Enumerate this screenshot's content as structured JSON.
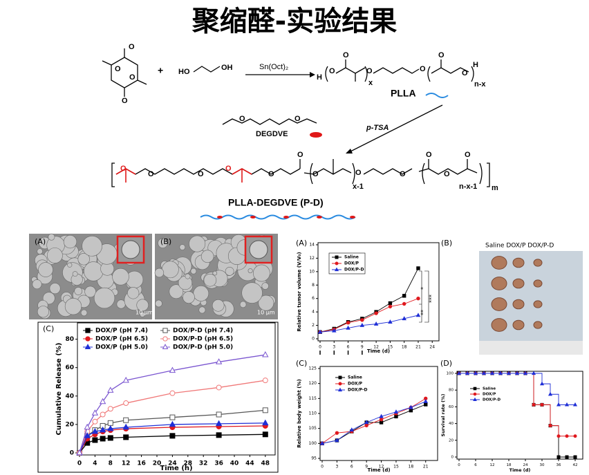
{
  "title": "聚缩醛-实验结果",
  "scheme": {
    "plus": "+",
    "ho": "HO",
    "oh": "OH",
    "atom_o": "O",
    "atom_h": "H",
    "catalyst": "Sn(Oct)₂",
    "x": "x",
    "n_x": "n-x",
    "plla": "PLLA",
    "degdve": "DEGDVE",
    "ptsa": "p-TSA",
    "x_1": "x-1",
    "n_x_1": "n-x-1",
    "m": "m",
    "product": "PLLA-DEGDVE  (P-D)"
  },
  "sem": {
    "label_a": "(A)",
    "label_b": "(B)",
    "scale": "10 μm"
  },
  "photo": {
    "label": "(B)",
    "groups": "Saline  DOX/P  DOX/P-D"
  },
  "chart_data": [
    {
      "type": "line",
      "label": "(C)",
      "xlabel": "Time (h)",
      "ylabel": "Cumulative Release (%)",
      "x": [
        0,
        2,
        4,
        6,
        8,
        12,
        24,
        36,
        48
      ],
      "xlim": [
        0,
        50
      ],
      "ylim": [
        0,
        90
      ],
      "xticks": [
        0,
        4,
        8,
        12,
        16,
        20,
        24,
        28,
        32,
        36,
        40,
        44,
        48
      ],
      "yticks": [
        0,
        20,
        40,
        60,
        80
      ],
      "series": [
        {
          "name": "DOX/P (pH 7.4)",
          "color": "#000000",
          "marker": "square",
          "filled": true,
          "values": [
            0,
            7,
            9,
            10,
            10.5,
            11,
            12,
            12.5,
            13
          ]
        },
        {
          "name": "DOX/P-D (pH 7.4)",
          "color": "#555555",
          "marker": "square",
          "filled": false,
          "values": [
            0,
            12,
            16,
            19,
            21,
            23,
            25,
            27,
            30
          ]
        },
        {
          "name": "DOX/P (pH 6.5)",
          "color": "#e0191e",
          "marker": "circle",
          "filled": true,
          "values": [
            0,
            10,
            13,
            15,
            16,
            17,
            18,
            18.5,
            19
          ]
        },
        {
          "name": "DOX/P-D (pH 6.5)",
          "color": "#f07878",
          "marker": "circle",
          "filled": false,
          "values": [
            0,
            15,
            22,
            27,
            31,
            35,
            42,
            46,
            51
          ]
        },
        {
          "name": "DOX/P (pH 5.0)",
          "color": "#1f2fd6",
          "marker": "triangle",
          "filled": true,
          "values": [
            0,
            12,
            15,
            16,
            17,
            18,
            20,
            20.5,
            21
          ]
        },
        {
          "name": "DOX/P-D (pH 5.0)",
          "color": "#7a55d0",
          "marker": "triangle",
          "filled": false,
          "values": [
            0,
            18,
            28,
            36,
            44,
            51,
            58,
            64,
            69
          ]
        }
      ]
    },
    {
      "type": "line",
      "label": "(A)",
      "xlabel": "Time (d)",
      "ylabel": "Relative tumor volume (V/V₀)",
      "annotations": [
        "*",
        "**",
        "***"
      ],
      "x": [
        0,
        3,
        6,
        9,
        12,
        15,
        18,
        21
      ],
      "xlim": [
        0,
        25
      ],
      "ylim": [
        0,
        14
      ],
      "xticks": [
        0,
        3,
        6,
        9,
        12,
        15,
        18,
        21,
        24
      ],
      "yticks": [
        0,
        2,
        4,
        6,
        8,
        10,
        12,
        14
      ],
      "series": [
        {
          "name": "Saline",
          "color": "#000000",
          "marker": "square",
          "filled": true,
          "values": [
            1,
            1.5,
            2.5,
            3,
            4,
            5.3,
            6.4,
            10.5
          ]
        },
        {
          "name": "DOX/P",
          "color": "#e0191e",
          "marker": "circle",
          "filled": true,
          "values": [
            1,
            1.4,
            2.4,
            2.8,
            3.8,
            4.8,
            5.2,
            6
          ]
        },
        {
          "name": "DOX/P-D",
          "color": "#1f2fd6",
          "marker": "triangle",
          "filled": true,
          "values": [
            1,
            1.2,
            1.6,
            2,
            2.2,
            2.5,
            3,
            3.5
          ]
        }
      ]
    },
    {
      "type": "line",
      "label": "(C)",
      "xlabel": "Time (d)",
      "ylabel": "Relative body weight (%)",
      "x": [
        0,
        3,
        6,
        9,
        12,
        15,
        18,
        21
      ],
      "xlim": [
        0,
        23
      ],
      "ylim": [
        95,
        125
      ],
      "xticks": [
        0,
        3,
        6,
        9,
        12,
        15,
        18,
        21
      ],
      "yticks": [
        95,
        100,
        105,
        110,
        115,
        120,
        125
      ],
      "series": [
        {
          "name": "Saline",
          "color": "#000000",
          "marker": "square",
          "filled": true,
          "values": [
            100,
            101,
            104,
            107,
            107,
            109,
            111,
            113
          ]
        },
        {
          "name": "DOX/P",
          "color": "#e0191e",
          "marker": "circle",
          "filled": true,
          "values": [
            100,
            103.5,
            104,
            106,
            108,
            110,
            112,
            115
          ]
        },
        {
          "name": "DOX/P-D",
          "color": "#1f2fd6",
          "marker": "triangle",
          "filled": true,
          "values": [
            100,
            101,
            104.5,
            107,
            109,
            110.5,
            112,
            114
          ]
        }
      ]
    },
    {
      "type": "step",
      "label": "(D)",
      "xlabel": "Time (d)",
      "ylabel": "Survival rate (%)",
      "x": [
        0,
        3,
        6,
        9,
        12,
        15,
        18,
        21,
        24,
        27,
        30,
        33,
        36,
        39,
        42
      ],
      "xlim": [
        0,
        44
      ],
      "ylim": [
        0,
        100
      ],
      "xticks": [
        0,
        6,
        12,
        18,
        24,
        30,
        36,
        42
      ],
      "yticks": [
        0,
        20,
        40,
        60,
        80,
        100
      ],
      "series": [
        {
          "name": "Saline",
          "color": "#000000",
          "marker": "square",
          "filled": true,
          "values": [
            100,
            100,
            100,
            100,
            100,
            100,
            100,
            100,
            100,
            62.5,
            62.5,
            37.5,
            0,
            0,
            0
          ]
        },
        {
          "name": "DOX/P",
          "color": "#e0191e",
          "marker": "circle",
          "filled": true,
          "values": [
            100,
            100,
            100,
            100,
            100,
            100,
            100,
            100,
            100,
            62.5,
            62.5,
            37.5,
            25,
            25,
            25
          ]
        },
        {
          "name": "DOX/P-D",
          "color": "#1f2fd6",
          "marker": "triangle",
          "filled": true,
          "values": [
            100,
            100,
            100,
            100,
            100,
            100,
            100,
            100,
            100,
            100,
            87.5,
            75,
            62.5,
            62.5,
            62.5
          ]
        }
      ]
    }
  ]
}
